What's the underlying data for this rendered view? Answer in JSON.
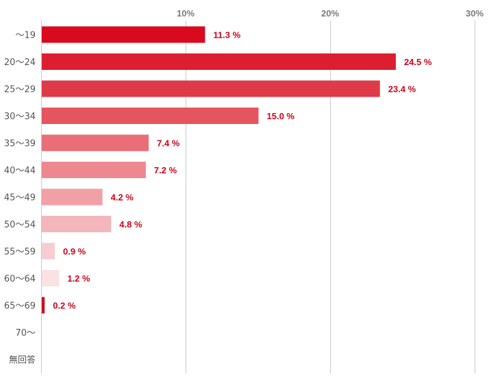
{
  "chart_data": {
    "type": "bar",
    "orientation": "horizontal",
    "categories": [
      "〜19",
      "20〜24",
      "25〜29",
      "30〜34",
      "35〜39",
      "40〜44",
      "45〜49",
      "50〜54",
      "55〜59",
      "60〜64",
      "65〜69",
      "70〜",
      "無回答"
    ],
    "values": [
      11.3,
      24.5,
      23.4,
      15.0,
      7.4,
      7.2,
      4.2,
      4.8,
      0.9,
      1.2,
      0.2,
      null,
      null
    ],
    "value_labels": [
      "11.3 %",
      "24.5 %",
      "23.4 %",
      "15.0 %",
      "7.4 %",
      "7.2 %",
      "4.2 %",
      "4.8 %",
      "0.9 %",
      "1.2 %",
      "0.2 %",
      "",
      ""
    ],
    "xticks": [
      10,
      20,
      30
    ],
    "xtick_labels": [
      "10%",
      "20%",
      "30%"
    ],
    "xlim": [
      0,
      30
    ],
    "grid": true,
    "bar_colors": [
      "#d90a1e",
      "#dc1f30",
      "#df3a48",
      "#e55560",
      "#ea6e77",
      "#ee8890",
      "#f0a0a6",
      "#f3b6bb",
      "#f7cdd1",
      "#fae1e3",
      "#c8101e",
      "#ffffff",
      "#ffffff"
    ],
    "label_color": "#d0021b"
  }
}
